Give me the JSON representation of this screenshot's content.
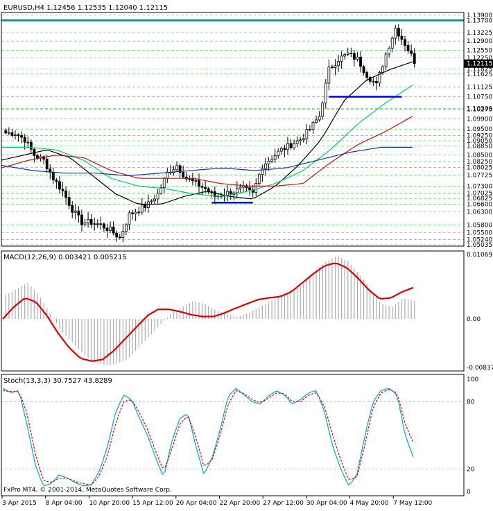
{
  "colors": {
    "background": "#ffffff",
    "frame": "#000000",
    "grid": "#33cc33",
    "candles": "#000000",
    "ma_fast": "#000000",
    "ma_mid": "#00cc77",
    "ma_slow_red": "#cc1111",
    "ma_slow_blue": "#1133aa",
    "support_lines": "#0000dd",
    "resistance_line": "#008888",
    "macd_hist": "#aaaaaa",
    "macd_signal": "#dd0000",
    "stoch_main": "#00aacc",
    "stoch_signal": "#dd0000"
  },
  "chart_data": [
    {
      "type": "candlestick",
      "title": "EURUSD,H4  1.12456 1.12535 1.12040 1.12115",
      "price_axis_labels": [
        "1.13900",
        "1.13700",
        "1.13225",
        "1.12900",
        "1.12550",
        "1.12250",
        "1.11825",
        "1.11625",
        "1.11125",
        "1.10750",
        "1.10300",
        "1.10275",
        "1.09900",
        "1.09500",
        "1.09250",
        "1.09050",
        "1.08850",
        "1.08500",
        "1.08250",
        "1.08025",
        "1.07725",
        "1.07300",
        "1.07025",
        "1.06825",
        "1.06600",
        "1.06300",
        "1.05800",
        "1.05500",
        "1.05240",
        "1.05035"
      ],
      "ylim": [
        1.05035,
        1.1395
      ],
      "grid": true,
      "bar_count": 130,
      "ohlc_waypoints": {
        "index": [
          0,
          3,
          6,
          9,
          12,
          15,
          18,
          21,
          24,
          27,
          30,
          33,
          36,
          39,
          42,
          45,
          48,
          51,
          54,
          57,
          60,
          63,
          66,
          69,
          72,
          75,
          78,
          81,
          84,
          87,
          90,
          93,
          96,
          99,
          102,
          105,
          108,
          111,
          114,
          117,
          120,
          123,
          126,
          129
        ],
        "close": [
          1.0935,
          1.0935,
          1.091,
          1.085,
          1.083,
          1.076,
          1.071,
          1.064,
          1.059,
          1.059,
          1.058,
          1.056,
          1.053,
          1.062,
          1.064,
          1.066,
          1.07,
          1.078,
          1.081,
          1.076,
          1.074,
          1.072,
          1.069,
          1.07,
          1.071,
          1.072,
          1.07,
          1.081,
          1.084,
          1.087,
          1.089,
          1.091,
          1.095,
          1.1,
          1.118,
          1.122,
          1.124,
          1.122,
          1.116,
          1.112,
          1.124,
          1.134,
          1.128,
          1.1212
        ]
      },
      "ma_lines": [
        {
          "name": "MA fast",
          "values": [
            1.083,
            1.085,
            1.087,
            1.084,
            1.077,
            1.07,
            1.066,
            1.066,
            1.069,
            1.071,
            1.069,
            1.068,
            1.073,
            1.081,
            1.091,
            1.106,
            1.114,
            1.118,
            1.121
          ]
        },
        {
          "name": "MA mid",
          "values": [
            1.088,
            1.088,
            1.087,
            1.083,
            1.076,
            1.073,
            1.072,
            1.07,
            1.069,
            1.071,
            1.074,
            1.079,
            1.087,
            1.097,
            1.105,
            1.112
          ]
        },
        {
          "name": "MA slow red",
          "values": [
            1.08,
            1.083,
            1.085,
            1.084,
            1.079,
            1.076,
            1.076,
            1.076,
            1.074,
            1.073,
            1.073,
            1.074,
            1.082,
            1.089,
            1.094,
            1.1
          ]
        },
        {
          "name": "MA slow blue",
          "values": [
            1.081,
            1.079,
            1.078,
            1.078,
            1.077,
            1.078,
            1.079,
            1.08,
            1.079,
            1.08,
            1.083,
            1.086,
            1.088,
            1.088
          ]
        }
      ],
      "resistance": {
        "price": 1.137
      },
      "supports": [
        {
          "price": 1.0666,
          "from_index": 65,
          "to_index": 78
        },
        {
          "price": 1.1075,
          "from_index": 102,
          "to_index": 125
        }
      ]
    },
    {
      "type": "line",
      "title": "MACD(12,26,9) 0.003421 0.005215",
      "y_axis_labels": [
        "0.010692",
        "0.00",
        "-0.008378"
      ],
      "ylim": [
        -0.008378,
        0.010692
      ],
      "histogram_waypoints": [
        0.004,
        0.005,
        0.006,
        0.004,
        0.001,
        -0.002,
        -0.004,
        -0.006,
        -0.0075,
        -0.008,
        -0.0078,
        -0.007,
        -0.005,
        -0.003,
        -0.001,
        0.001,
        0.002,
        0.003,
        0.0025,
        0.0015,
        0.0008,
        0.0003,
        0.001,
        0.002,
        0.003,
        0.0038,
        0.0045,
        0.006,
        0.008,
        0.0095,
        0.0105,
        0.0095,
        0.0075,
        0.005,
        0.0025,
        0.002,
        0.0035,
        0.003
      ],
      "signal_waypoints": [
        0.0,
        0.002,
        0.0035,
        0.0028,
        0.0005,
        -0.0025,
        -0.005,
        -0.0068,
        -0.0073,
        -0.007,
        -0.0055,
        -0.0035,
        -0.0015,
        0.0005,
        0.0016,
        0.0016,
        0.0012,
        0.0007,
        0.0004,
        0.0004,
        0.001,
        0.0018,
        0.0025,
        0.0032,
        0.0035,
        0.0037,
        0.0045,
        0.006,
        0.0075,
        0.0088,
        0.0093,
        0.0085,
        0.0068,
        0.0048,
        0.0033,
        0.0035,
        0.0045,
        0.0052
      ]
    },
    {
      "type": "line",
      "title": "Stoch(13,3,3) 30.7527 43.8289",
      "y_axis_labels": [
        "100",
        "80",
        "20",
        "0"
      ],
      "ylim": [
        0,
        100
      ],
      "main_waypoints": [
        92,
        88,
        90,
        60,
        25,
        5,
        7,
        15,
        12,
        8,
        5,
        6,
        18,
        40,
        70,
        86,
        82,
        65,
        50,
        30,
        12,
        45,
        65,
        70,
        40,
        15,
        30,
        55,
        85,
        92,
        86,
        80,
        78,
        85,
        90,
        86,
        78,
        82,
        88,
        90,
        70,
        40,
        20,
        5,
        15,
        50,
        80,
        90,
        92,
        86,
        50,
        30.75
      ],
      "signal_waypoints": [
        90,
        89,
        89,
        70,
        35,
        10,
        8,
        12,
        12,
        9,
        7,
        6,
        14,
        32,
        60,
        80,
        82,
        70,
        55,
        36,
        18,
        38,
        60,
        68,
        48,
        22,
        28,
        50,
        78,
        90,
        87,
        82,
        79,
        83,
        88,
        87,
        80,
        80,
        86,
        88,
        75,
        50,
        28,
        10,
        13,
        42,
        75,
        88,
        91,
        88,
        60,
        43.83
      ]
    }
  ],
  "time_axis_labels": [
    "3 Apr 2015",
    "8 Apr 04:00",
    "10 Apr 20:00",
    "15 Apr 12:00",
    "20 Apr 04:00",
    "22 Apr 20:00",
    "27 Apr 12:00",
    "30 Apr 04:00",
    "4 May 20:00",
    "7 May 12:00"
  ],
  "current_price_label": "1.12115",
  "copyright": "FxPro MT4, © 2001-2014, MetaQuotes Software Corp."
}
